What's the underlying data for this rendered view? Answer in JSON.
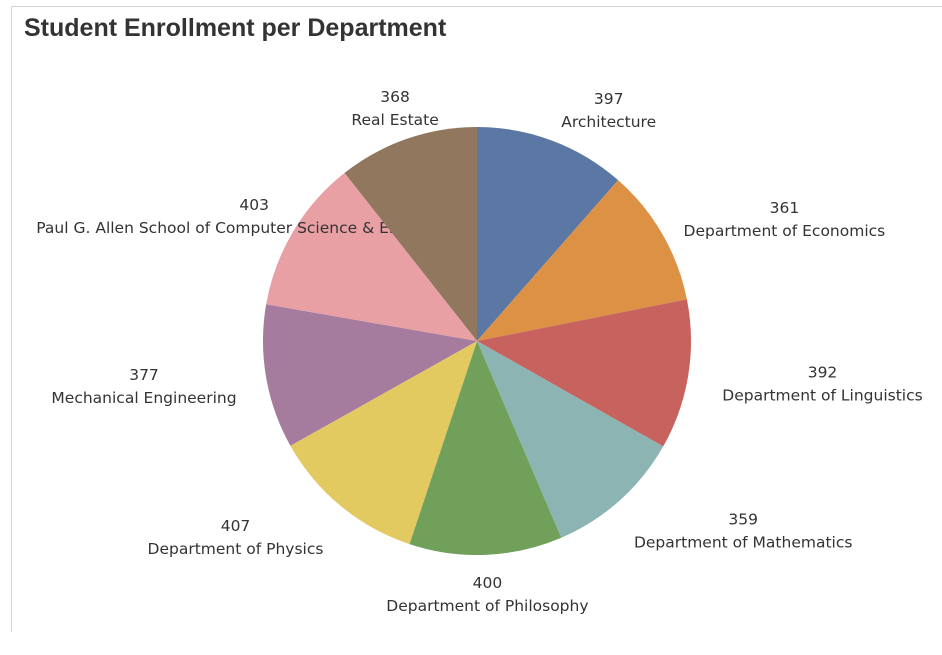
{
  "chart_data": {
    "type": "pie",
    "title": "Student Enrollment per Department",
    "slices": [
      {
        "label": "Architecture",
        "value": 397,
        "color": "#5b78a4"
      },
      {
        "label": "Department of Economics",
        "value": 361,
        "color": "#dc9144"
      },
      {
        "label": "Department of Linguistics",
        "value": 392,
        "color": "#c8625e"
      },
      {
        "label": "Department of Mathematics",
        "value": 359,
        "color": "#8cb4b3"
      },
      {
        "label": "Department of Philosophy",
        "value": 400,
        "color": "#70a05a"
      },
      {
        "label": "Department of Physics",
        "value": 407,
        "color": "#e2ca60"
      },
      {
        "label": "Mechanical Engineering",
        "value": 377,
        "color": "#a57c9e"
      },
      {
        "label": "Paul G. Allen School of Computer Science & Engineering",
        "value": 403,
        "color": "#e9a0a5"
      },
      {
        "label": "Real Estate",
        "value": 368,
        "color": "#92775f"
      }
    ],
    "legend": "none",
    "data_labels": "value and category outside slices"
  }
}
